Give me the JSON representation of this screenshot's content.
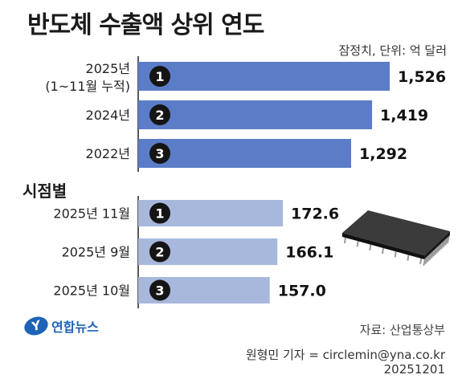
{
  "title": "반도체 수출액 상위 연도",
  "note": "잠정치, 단위: 억 달러",
  "section2_title": "시점별",
  "colors": {
    "annual_bar": "#5b7dc8",
    "monthly_bar": "#a7b8dc",
    "badge": "#151515"
  },
  "chart_data": [
    {
      "type": "bar",
      "orientation": "horizontal",
      "categories": [
        [
          "2025년",
          "(1~11월 누적)"
        ],
        [
          "2024년"
        ],
        [
          "2022년"
        ]
      ],
      "ranks": [
        "1",
        "2",
        "3"
      ],
      "values": [
        1526,
        1419,
        1292
      ],
      "value_labels": [
        "1,526",
        "1,419",
        "1,292"
      ]
    },
    {
      "type": "bar",
      "orientation": "horizontal",
      "categories": [
        [
          "2025년 11월"
        ],
        [
          "2025년 9월"
        ],
        [
          "2025년 10월"
        ]
      ],
      "ranks": [
        "1",
        "2",
        "3"
      ],
      "values": [
        172.6,
        166.1,
        157.0
      ],
      "value_labels": [
        "172.6",
        "166.1",
        "157.0"
      ]
    }
  ],
  "footer": {
    "logo_mark": "Y",
    "logo_text": "연합뉴스",
    "source": "자료: 산업통상부",
    "credit": "원형민 기자 = circlemin@yna.co.kr",
    "date": "20251201"
  }
}
